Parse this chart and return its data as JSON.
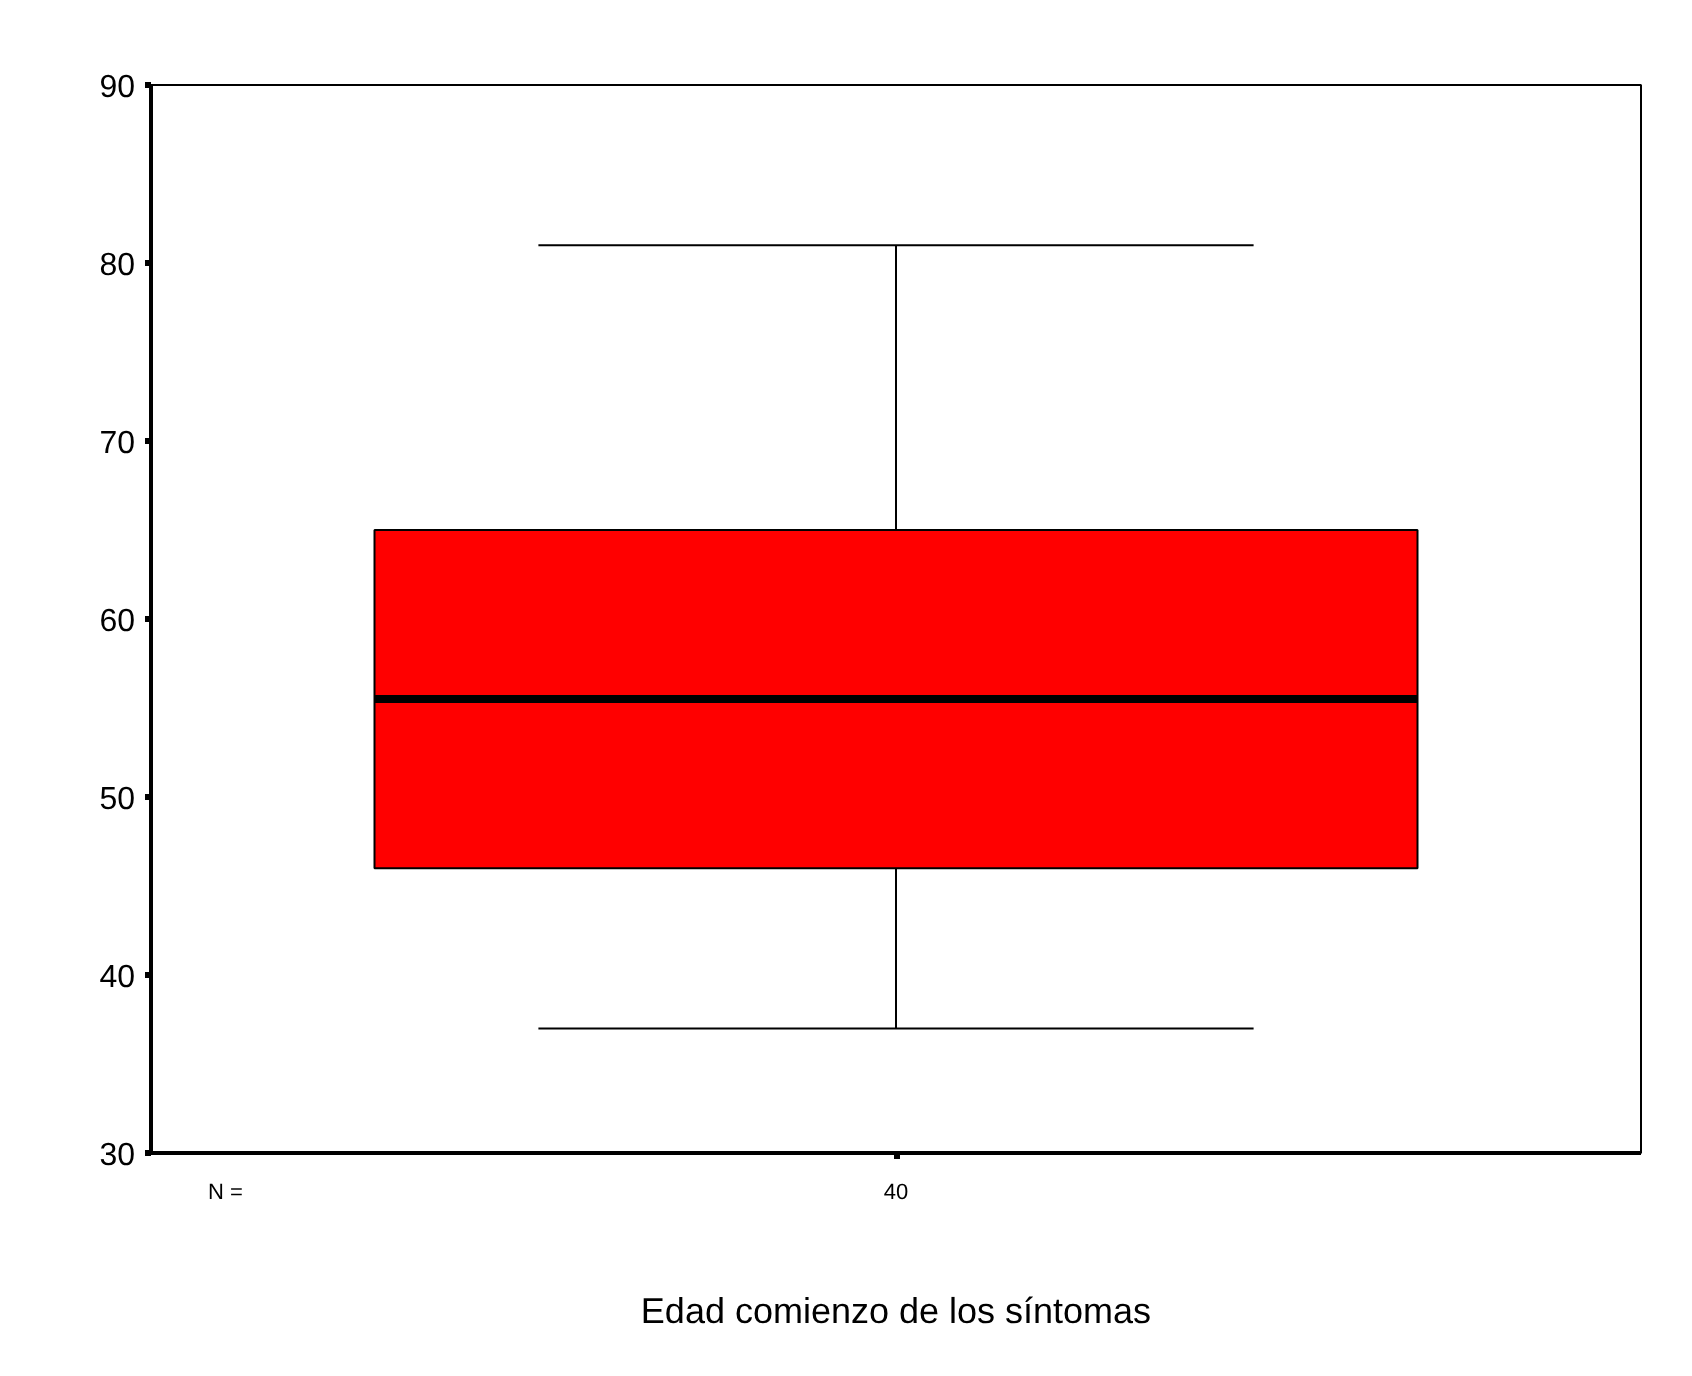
{
  "chart_data": {
    "type": "box",
    "categories": [
      null
    ],
    "xlabel": "Edad comienzo de los síntomas",
    "boxes": [
      {
        "low": 37,
        "q1": 46,
        "median": 55.5,
        "q3": 65,
        "high": 81
      }
    ],
    "color": "#ff0000",
    "ylim": [
      30,
      90
    ],
    "yticks": [
      30,
      40,
      50,
      60,
      70,
      80,
      90
    ],
    "grid": false,
    "annotations": [
      "N =",
      "40"
    ]
  }
}
